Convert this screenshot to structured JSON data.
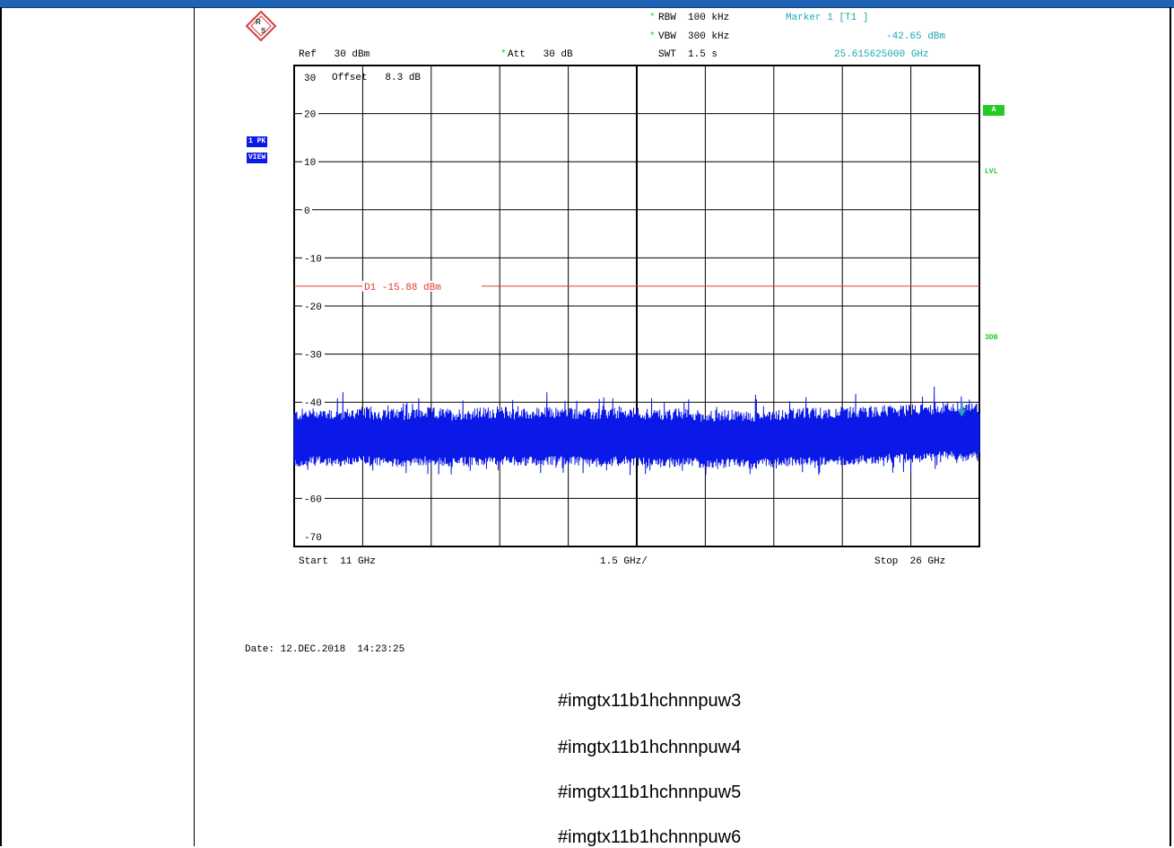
{
  "header": {
    "ref": "Ref   30 dBm",
    "att": "Att   30 dB",
    "rbw": "RBW  100 kHz",
    "vbw": "VBW  300 kHz",
    "swt": "SWT  1.5 s",
    "marker_title": "Marker 1 [T1 ]",
    "marker_level": "-42.65 dBm",
    "marker_freq": "25.615625000 GHz",
    "star": "*"
  },
  "plot_labels": {
    "offset": "Offset   8.3 dB",
    "display_line": "D1 -15.88 dBm"
  },
  "side_badges": {
    "trace_mode": "1 PK",
    "trace_view": "VIEW",
    "a": "A",
    "lvl": "LVL",
    "threedb": "3DB"
  },
  "footer": {
    "start": "Start  11 GHz",
    "span_div": "1.5 GHz/",
    "stop": "Stop  26 GHz",
    "date": "Date: 12.DEC.2018  14:23:25"
  },
  "refs": [
    "#imgtx11b1hchnnpuw3",
    "#imgtx11b1hchnnpuw4",
    "#imgtx11b1hchnnpuw5",
    "#imgtx11b1hchnnpuw6"
  ],
  "colors": {
    "trace": "#0a18e8",
    "display_line": "#e23a30",
    "marker": "#1da6b8",
    "status_green": "#22cc22",
    "topbar": "#1f64b4"
  },
  "icons": {
    "logo": "rohde-schwarz-logo-icon",
    "marker": "marker-triangle-icon"
  },
  "chart_data": {
    "type": "line",
    "xlabel": "",
    "ylabel": "",
    "xlim": [
      11,
      26
    ],
    "ylim": [
      -70,
      30
    ],
    "x_unit": "GHz",
    "y_unit": "dBm",
    "grid": true,
    "y_ticks": [
      30,
      20,
      10,
      0,
      -10,
      -20,
      -30,
      -40,
      -50,
      -60,
      -70
    ],
    "y_tick_labels": [
      "30",
      "20",
      "10",
      "0",
      "-10",
      "-20",
      "-30",
      "-40",
      "",
      "-60",
      "-70"
    ],
    "display_line": {
      "label": "D1 -15.88 dBm",
      "value": -15.88
    },
    "marker": {
      "label": "1",
      "x": 25.615625,
      "y": -42.65
    },
    "series": [
      {
        "x": [
          11.0,
          11.5,
          12.0,
          12.5,
          13.0,
          13.5,
          14.0,
          14.5,
          15.0,
          15.5,
          16.0,
          16.5,
          17.0,
          17.5,
          18.0,
          18.5,
          19.0,
          19.5,
          20.0,
          20.5,
          21.0,
          21.5,
          22.0,
          22.5,
          23.0,
          23.5,
          24.0,
          24.5,
          25.0,
          25.5,
          26.0
        ],
        "y": [
          -47.5,
          -47.0,
          -47.3,
          -46.9,
          -47.4,
          -47.2,
          -47.0,
          -47.3,
          -47.1,
          -46.8,
          -47.2,
          -47.0,
          -46.9,
          -47.3,
          -47.1,
          -47.0,
          -47.4,
          -47.2,
          -47.6,
          -47.5,
          -47.8,
          -47.3,
          -47.2,
          -47.0,
          -46.9,
          -46.8,
          -46.5,
          -46.4,
          -46.0,
          -45.8,
          -46.2
        ]
      }
    ]
  }
}
